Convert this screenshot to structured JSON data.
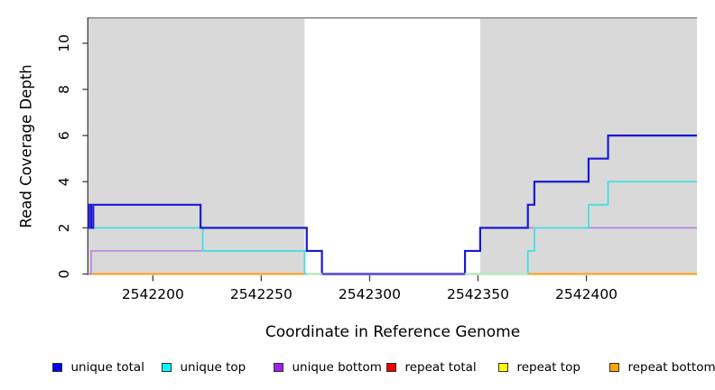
{
  "chart_data": {
    "type": "line",
    "subtype": "step-coverage",
    "title": "",
    "xlabel": "Coordinate in Reference Genome",
    "ylabel": "Read Coverage Depth",
    "x_range": [
      2542170,
      2542451
    ],
    "y_range": [
      0,
      11.1
    ],
    "x_ticks": [
      2542200,
      2542250,
      2542300,
      2542350,
      2542400
    ],
    "x_tick_labels": [
      "2542200",
      "2542250",
      "2542300",
      "2542350",
      "2542400"
    ],
    "y_ticks": [
      0,
      2,
      4,
      6,
      8,
      10
    ],
    "y_tick_labels": [
      "0",
      "2",
      "4",
      "6",
      "8",
      "10"
    ],
    "grid": "off",
    "background_color": "#ffffff",
    "shaded_regions": [
      {
        "from": 2542170,
        "to": 2542270,
        "color": "#d9d9d9"
      },
      {
        "from": 2542351,
        "to": 2542451,
        "color": "#d9d9d9"
      }
    ],
    "top_border_line": {
      "y": 11.1,
      "color": "#8f8f8f"
    },
    "axis_color": "#404040",
    "series": [
      {
        "name": "repeat total",
        "legend_color": "#EE0000",
        "line_color": "#DD0000",
        "width": 1.5,
        "steps": [
          [
            2542170,
            0
          ],
          [
            2542451,
            0
          ]
        ]
      },
      {
        "name": "repeat top",
        "legend_color": "#FFFF00",
        "line_color": "#F0E400",
        "width": 1.5,
        "steps": [
          [
            2542170,
            0
          ],
          [
            2542451,
            0
          ]
        ]
      },
      {
        "name": "repeat bottom",
        "legend_color": "#FFA500",
        "line_color": "#FF9E10",
        "width": 2,
        "steps": [
          [
            2542170,
            0
          ],
          [
            2542451,
            0
          ]
        ]
      },
      {
        "name": "unique bottom",
        "legend_color": "#A020F0",
        "line_color": "#AD7BE2",
        "width": 1.4,
        "steps": [
          [
            2542170,
            0
          ],
          [
            2542171.5,
            1
          ],
          [
            2542270,
            0
          ],
          [
            2542344,
            1
          ],
          [
            2542351,
            2
          ],
          [
            2542451,
            2
          ]
        ]
      },
      {
        "name": "unique top",
        "legend_color": "#00FFFF",
        "line_color": "#45DFDF",
        "width": 1.8,
        "steps": [
          [
            2542170,
            2
          ],
          [
            2542223,
            1
          ],
          [
            2542270,
            0
          ],
          [
            2542373,
            1
          ],
          [
            2542376,
            2
          ],
          [
            2542401,
            3
          ],
          [
            2542410,
            4
          ],
          [
            2542451,
            4
          ]
        ]
      },
      {
        "name": "unique total",
        "legend_color": "#0000EE",
        "line_color": "#1A1AD2",
        "width": 2.2,
        "steps": [
          [
            2542170,
            2
          ],
          [
            2542170.5,
            3
          ],
          [
            2542171.5,
            2
          ],
          [
            2542172.5,
            3
          ],
          [
            2542222,
            2
          ],
          [
            2542271,
            1
          ],
          [
            2542278,
            0
          ],
          [
            2542344,
            1
          ],
          [
            2542351,
            2
          ],
          [
            2542373,
            3
          ],
          [
            2542376,
            4
          ],
          [
            2542401,
            5
          ],
          [
            2542410,
            6
          ],
          [
            2542451,
            6
          ]
        ]
      }
    ],
    "zero_line_overlays": [
      {
        "from": 2542271,
        "to": 2542278,
        "color": "#b9e7bd"
      },
      {
        "from": 2542278,
        "to": 2542344,
        "color": "#5B50D2"
      },
      {
        "from": 2542344,
        "to": 2542373,
        "color": "#b9e7bd"
      }
    ],
    "legend": {
      "position": "bottom",
      "entries": [
        {
          "label": "unique total",
          "color": "#0000EE"
        },
        {
          "label": "unique top",
          "color": "#00FFFF"
        },
        {
          "label": "unique bottom",
          "color": "#A020F0"
        },
        {
          "label": "repeat total",
          "color": "#EE0000"
        },
        {
          "label": "repeat top",
          "color": "#FFFF00"
        },
        {
          "label": "repeat bottom",
          "color": "#FFA500"
        }
      ]
    }
  }
}
